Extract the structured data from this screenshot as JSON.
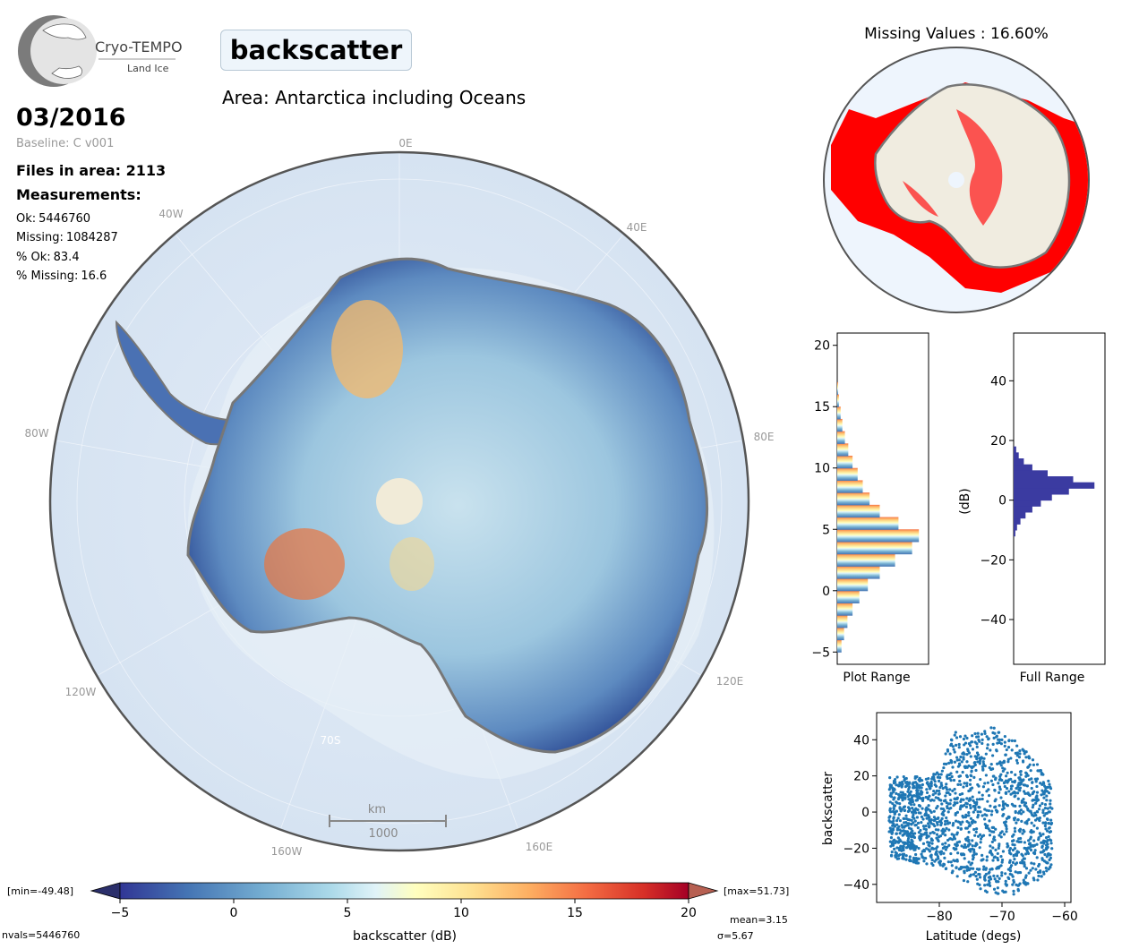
{
  "header": {
    "logo": {
      "name": "Cryo-TEMPO",
      "sub": "Land Ice"
    },
    "parameter": "backscatter",
    "area_title": "Area: Antarctica including Oceans",
    "date": "03/2016",
    "baseline": "Baseline: C v001",
    "files_label": "Files in area:",
    "files_value": "2113",
    "measurements_label": "Measurements:",
    "stats": [
      {
        "label": "Ok:",
        "value": "5446760"
      },
      {
        "label": "Missing:",
        "value": "1084287"
      },
      {
        "label": "% Ok:",
        "value": "83.4"
      },
      {
        "label": "% Missing:",
        "value": "16.6"
      }
    ]
  },
  "main_map": {
    "lon_labels": [
      "0E",
      "40E",
      "80E",
      "120E",
      "160E",
      "160W",
      "120W",
      "80W",
      "40W"
    ],
    "lat_label": "70S",
    "scale_bar": {
      "unit": "km",
      "value": "1000"
    }
  },
  "colorbar": {
    "min_label": "[min=-49.48]",
    "max_label": "[max=51.73]",
    "xlabel": "backscatter (dB)",
    "ticks": [
      "-5",
      "0",
      "5",
      "10",
      "15",
      "20"
    ],
    "nvals": "nvals=5446760",
    "mean": "mean=3.15",
    "sigma": "σ=5.67",
    "colors": [
      "#313695",
      "#4575b4",
      "#74add1",
      "#abd9e9",
      "#e0f3f8",
      "#ffffbf",
      "#fee090",
      "#fdae61",
      "#f46d43",
      "#d73027",
      "#a50026"
    ]
  },
  "missing_map": {
    "title": "Missing Values : 16.60%",
    "missing_color": "#ff0000"
  },
  "chart_data": [
    {
      "type": "histogram",
      "name": "plot-range",
      "xlabel": "Plot Range",
      "orientation": "horizontal",
      "y_ticks": [
        "20",
        "15",
        "10",
        "5",
        "0",
        "-5"
      ],
      "ylim": [
        -6,
        21
      ],
      "bins": [
        -5,
        -4,
        -3,
        -2,
        -1,
        0,
        1,
        2,
        3,
        4,
        5,
        6,
        7,
        8,
        9,
        10,
        11,
        12,
        13,
        14,
        15,
        16
      ],
      "counts": [
        0.05,
        0.08,
        0.12,
        0.18,
        0.26,
        0.36,
        0.5,
        0.68,
        0.88,
        0.96,
        0.72,
        0.5,
        0.38,
        0.3,
        0.24,
        0.18,
        0.13,
        0.09,
        0.06,
        0.04,
        0.02,
        0.01
      ]
    },
    {
      "type": "histogram",
      "name": "full-range",
      "xlabel": "Full Range",
      "ylabel": "(dB)",
      "orientation": "horizontal",
      "y_ticks": [
        "40",
        "20",
        "0",
        "-20",
        "-40"
      ],
      "ylim": [
        -55,
        56
      ],
      "bins": [
        -12,
        -10,
        -8,
        -6,
        -4,
        -2,
        0,
        2,
        4,
        6,
        8,
        10,
        12,
        14,
        16
      ],
      "counts": [
        0.02,
        0.04,
        0.08,
        0.14,
        0.22,
        0.32,
        0.45,
        0.65,
        0.95,
        0.7,
        0.4,
        0.22,
        0.12,
        0.06,
        0.03
      ],
      "color": "#3b3ba1"
    },
    {
      "type": "scatter",
      "name": "backscatter-vs-latitude",
      "xlabel": "Latitude (degs)",
      "ylabel": "backscatter",
      "x_ticks": [
        "-80",
        "-70",
        "-60"
      ],
      "y_ticks": [
        "40",
        "20",
        "0",
        "-20",
        "-40"
      ],
      "xlim": [
        -90,
        -59
      ],
      "ylim": [
        -50,
        55
      ],
      "color": "#1f77b4",
      "envelope": [
        {
          "x": -88,
          "ymin": -25,
          "ymax": 20
        },
        {
          "x": -84,
          "ymin": -28,
          "ymax": 20
        },
        {
          "x": -80,
          "ymin": -30,
          "ymax": 22
        },
        {
          "x": -78,
          "ymin": -35,
          "ymax": 45
        },
        {
          "x": -75,
          "ymin": -40,
          "ymax": 42
        },
        {
          "x": -72,
          "ymin": -45,
          "ymax": 48
        },
        {
          "x": -68,
          "ymin": -46,
          "ymax": 40
        },
        {
          "x": -65,
          "ymin": -40,
          "ymax": 30
        },
        {
          "x": -62,
          "ymin": -30,
          "ymax": 15
        }
      ]
    }
  ]
}
